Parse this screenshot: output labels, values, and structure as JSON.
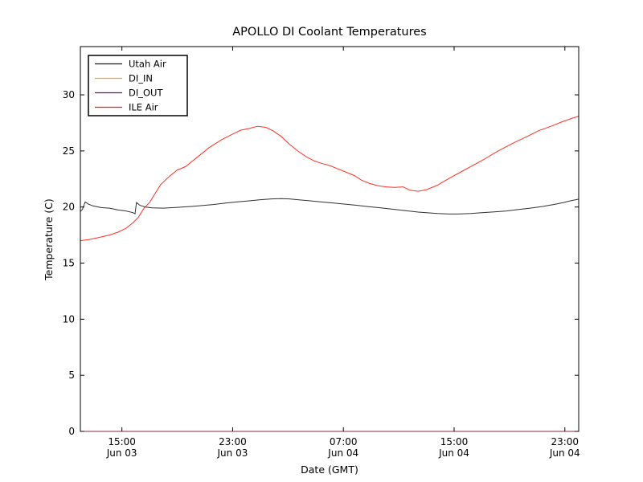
{
  "chart_data": {
    "type": "line",
    "title": "APOLLO DI Coolant Temperatures",
    "xlabel": "Date (GMT)",
    "ylabel": "Temperature (C)",
    "x_unit_note": "hours since Jun 03 12:00 GMT",
    "xlim": [
      0,
      36
    ],
    "ylim": [
      0,
      34.3
    ],
    "grid": false,
    "legend_position": "upper-left",
    "y_ticks": [
      0,
      5,
      10,
      15,
      20,
      25,
      30
    ],
    "x_ticks": [
      {
        "pos": 3,
        "time": "15:00",
        "date": "Jun 03"
      },
      {
        "pos": 11,
        "time": "23:00",
        "date": "Jun 03"
      },
      {
        "pos": 19,
        "time": "07:00",
        "date": "Jun 04"
      },
      {
        "pos": 27,
        "time": "15:00",
        "date": "Jun 04"
      },
      {
        "pos": 35,
        "time": "23:00",
        "date": "Jun 04"
      }
    ],
    "series": [
      {
        "name": "Utah Air",
        "color": "#1a1a1a",
        "points": [
          [
            0,
            19.6
          ],
          [
            0.15,
            19.8
          ],
          [
            0.35,
            20.45
          ],
          [
            0.6,
            20.25
          ],
          [
            0.9,
            20.1
          ],
          [
            1.5,
            19.95
          ],
          [
            2.1,
            19.9
          ],
          [
            2.7,
            19.75
          ],
          [
            3.3,
            19.65
          ],
          [
            3.8,
            19.5
          ],
          [
            3.95,
            19.4
          ],
          [
            4.05,
            20.4
          ],
          [
            4.3,
            20.15
          ],
          [
            4.7,
            20.0
          ],
          [
            5.2,
            19.92
          ],
          [
            6.0,
            19.9
          ],
          [
            7.0,
            19.97
          ],
          [
            8.0,
            20.05
          ],
          [
            8.7,
            20.12
          ],
          [
            9.6,
            20.22
          ],
          [
            10.5,
            20.35
          ],
          [
            11.3,
            20.45
          ],
          [
            12.2,
            20.55
          ],
          [
            13.0,
            20.65
          ],
          [
            13.8,
            20.72
          ],
          [
            14.5,
            20.75
          ],
          [
            15.1,
            20.72
          ],
          [
            15.7,
            20.65
          ],
          [
            16.6,
            20.55
          ],
          [
            17.4,
            20.45
          ],
          [
            18.3,
            20.35
          ],
          [
            19.2,
            20.25
          ],
          [
            20.0,
            20.15
          ],
          [
            20.9,
            20.02
          ],
          [
            21.7,
            19.92
          ],
          [
            22.6,
            19.8
          ],
          [
            23.5,
            19.68
          ],
          [
            24.4,
            19.55
          ],
          [
            25.2,
            19.48
          ],
          [
            25.8,
            19.42
          ],
          [
            26.6,
            19.38
          ],
          [
            27.3,
            19.38
          ],
          [
            28.2,
            19.42
          ],
          [
            29.0,
            19.5
          ],
          [
            29.9,
            19.57
          ],
          [
            30.8,
            19.65
          ],
          [
            31.6,
            19.77
          ],
          [
            32.5,
            19.9
          ],
          [
            33.4,
            20.05
          ],
          [
            34.3,
            20.25
          ],
          [
            34.9,
            20.4
          ],
          [
            35.4,
            20.55
          ],
          [
            36,
            20.7
          ]
        ]
      },
      {
        "name": "DI_IN",
        "color": "#ffa500",
        "points": [
          [
            0,
            0
          ],
          [
            36,
            0
          ]
        ]
      },
      {
        "name": "DI_OUT",
        "color": "#7f007f",
        "points": [
          [
            0,
            0
          ],
          [
            36,
            0
          ]
        ]
      },
      {
        "name": "ILE Air",
        "color": "#ff1a0e",
        "points": [
          [
            0,
            17.0
          ],
          [
            0.6,
            17.1
          ],
          [
            1.2,
            17.25
          ],
          [
            2.1,
            17.5
          ],
          [
            2.7,
            17.75
          ],
          [
            3.3,
            18.1
          ],
          [
            3.8,
            18.6
          ],
          [
            4.2,
            19.1
          ],
          [
            4.6,
            19.9
          ],
          [
            5.0,
            20.4
          ],
          [
            5.4,
            21.2
          ],
          [
            5.8,
            22.0
          ],
          [
            6.4,
            22.7
          ],
          [
            7.0,
            23.3
          ],
          [
            7.6,
            23.6
          ],
          [
            8.0,
            24.0
          ],
          [
            8.4,
            24.4
          ],
          [
            9.3,
            25.3
          ],
          [
            10.2,
            26.0
          ],
          [
            11.0,
            26.5
          ],
          [
            11.6,
            26.85
          ],
          [
            12.2,
            27.0
          ],
          [
            12.8,
            27.2
          ],
          [
            13.4,
            27.1
          ],
          [
            13.9,
            26.8
          ],
          [
            14.5,
            26.3
          ],
          [
            15.1,
            25.6
          ],
          [
            15.7,
            25.0
          ],
          [
            16.3,
            24.5
          ],
          [
            16.9,
            24.1
          ],
          [
            17.4,
            23.9
          ],
          [
            18.0,
            23.7
          ],
          [
            18.6,
            23.4
          ],
          [
            19.2,
            23.1
          ],
          [
            19.8,
            22.8
          ],
          [
            20.3,
            22.4
          ],
          [
            20.9,
            22.1
          ],
          [
            21.5,
            21.9
          ],
          [
            22.1,
            21.8
          ],
          [
            22.7,
            21.75
          ],
          [
            23.3,
            21.8
          ],
          [
            23.8,
            21.5
          ],
          [
            24.4,
            21.4
          ],
          [
            25.0,
            21.55
          ],
          [
            25.8,
            21.95
          ],
          [
            26.7,
            22.6
          ],
          [
            27.6,
            23.2
          ],
          [
            28.5,
            23.8
          ],
          [
            29.1,
            24.2
          ],
          [
            29.9,
            24.8
          ],
          [
            30.8,
            25.4
          ],
          [
            31.6,
            25.9
          ],
          [
            32.3,
            26.3
          ],
          [
            33.1,
            26.8
          ],
          [
            34.0,
            27.2
          ],
          [
            34.8,
            27.6
          ],
          [
            35.5,
            27.9
          ],
          [
            36,
            28.1
          ]
        ]
      }
    ]
  }
}
